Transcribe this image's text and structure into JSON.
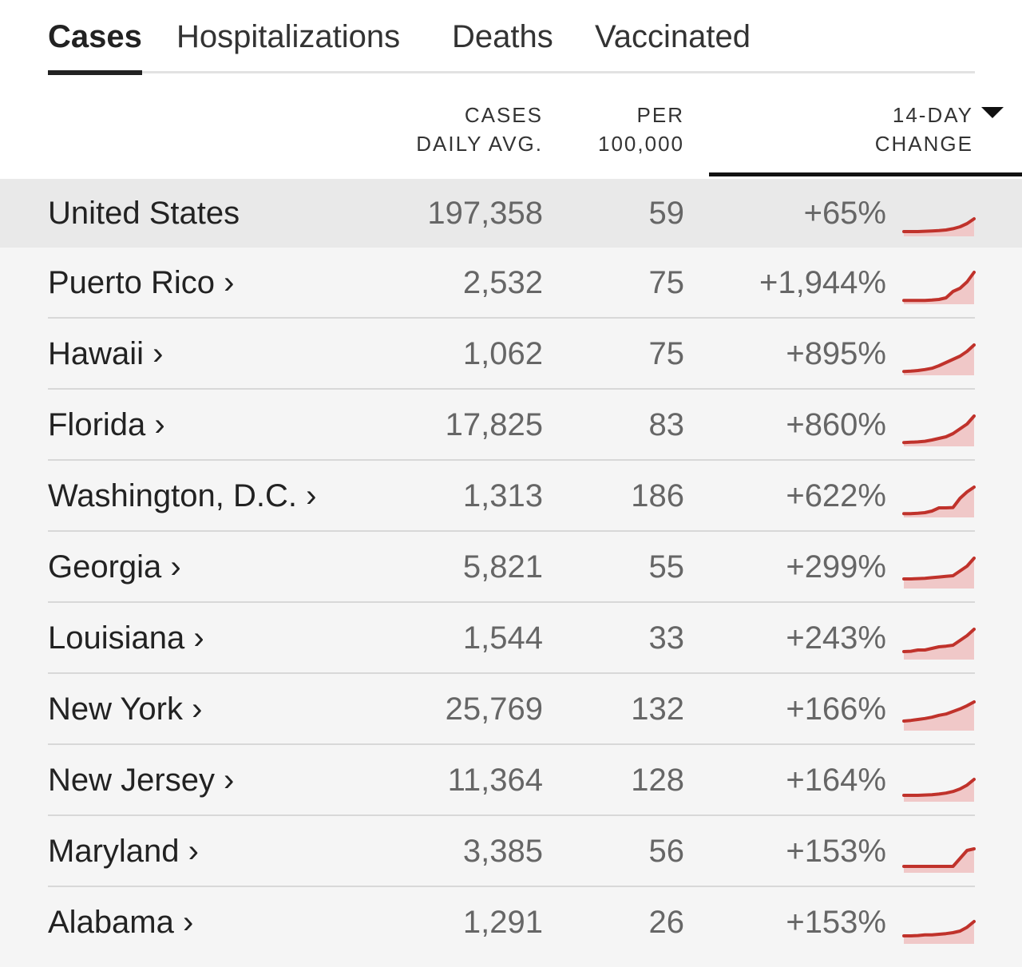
{
  "tabs": [
    {
      "label": "Cases",
      "active": true
    },
    {
      "label": "Hospitalizations",
      "active": false
    },
    {
      "label": "Deaths",
      "active": false
    },
    {
      "label": "Vaccinated",
      "active": false
    }
  ],
  "table": {
    "columns": {
      "cases_line1": "CASES",
      "cases_line2": "DAILY AVG.",
      "per_line1": "PER",
      "per_line2": "100,000",
      "change_line1": "14-DAY",
      "change_line2": "CHANGE"
    },
    "sort_icon": "triangle-down-icon",
    "rows": [
      {
        "name": "United States",
        "avg": "197,358",
        "per": "59",
        "change": "+65%",
        "trend": [
          0.05,
          0.05,
          0.05,
          0.06,
          0.07,
          0.08,
          0.1,
          0.14,
          0.2,
          0.3,
          0.45
        ]
      },
      {
        "name": "Puerto Rico ›",
        "avg": "2,532",
        "per": "75",
        "change": "+1,944%",
        "trend": [
          0.02,
          0.02,
          0.02,
          0.02,
          0.03,
          0.05,
          0.1,
          0.3,
          0.4,
          0.6,
          0.9
        ]
      },
      {
        "name": "Hawaii ›",
        "avg": "1,062",
        "per": "75",
        "change": "+895%",
        "trend": [
          0.02,
          0.03,
          0.05,
          0.08,
          0.12,
          0.2,
          0.3,
          0.4,
          0.5,
          0.65,
          0.85
        ]
      },
      {
        "name": "Florida ›",
        "avg": "17,825",
        "per": "83",
        "change": "+860%",
        "trend": [
          0.02,
          0.03,
          0.04,
          0.06,
          0.1,
          0.15,
          0.2,
          0.3,
          0.45,
          0.6,
          0.85
        ]
      },
      {
        "name": "Washington, D.C. ›",
        "avg": "1,313",
        "per": "186",
        "change": "+622%",
        "trend": [
          0.02,
          0.02,
          0.03,
          0.05,
          0.1,
          0.2,
          0.2,
          0.21,
          0.5,
          0.7,
          0.85
        ]
      },
      {
        "name": "Georgia ›",
        "avg": "5,821",
        "per": "55",
        "change": "+299%",
        "trend": [
          0.2,
          0.2,
          0.21,
          0.22,
          0.24,
          0.26,
          0.28,
          0.3,
          0.45,
          0.6,
          0.85
        ]
      },
      {
        "name": "Louisiana ›",
        "avg": "1,544",
        "per": "33",
        "change": "+243%",
        "trend": [
          0.15,
          0.16,
          0.2,
          0.2,
          0.25,
          0.3,
          0.32,
          0.35,
          0.5,
          0.65,
          0.85
        ]
      },
      {
        "name": "New York ›",
        "avg": "25,769",
        "per": "132",
        "change": "+166%",
        "trend": [
          0.2,
          0.22,
          0.25,
          0.28,
          0.32,
          0.38,
          0.42,
          0.5,
          0.58,
          0.68,
          0.8
        ]
      },
      {
        "name": "New Jersey ›",
        "avg": "11,364",
        "per": "128",
        "change": "+164%",
        "trend": [
          0.1,
          0.1,
          0.1,
          0.11,
          0.12,
          0.14,
          0.17,
          0.22,
          0.3,
          0.42,
          0.6
        ]
      },
      {
        "name": "Maryland ›",
        "avg": "3,385",
        "per": "56",
        "change": "+153%",
        "trend": [
          0.1,
          0.1,
          0.1,
          0.1,
          0.1,
          0.1,
          0.1,
          0.1,
          0.35,
          0.6,
          0.65
        ]
      },
      {
        "name": "Alabama ›",
        "avg": "1,291",
        "per": "26",
        "change": "+153%",
        "trend": [
          0.15,
          0.15,
          0.16,
          0.18,
          0.18,
          0.2,
          0.22,
          0.25,
          0.3,
          0.42,
          0.6
        ]
      }
    ]
  },
  "colors": {
    "spark_line": "#c0322b",
    "spark_area": "#f0c8c8",
    "highlight_row": "#e9e9e9",
    "body_bg": "#f5f5f5"
  }
}
